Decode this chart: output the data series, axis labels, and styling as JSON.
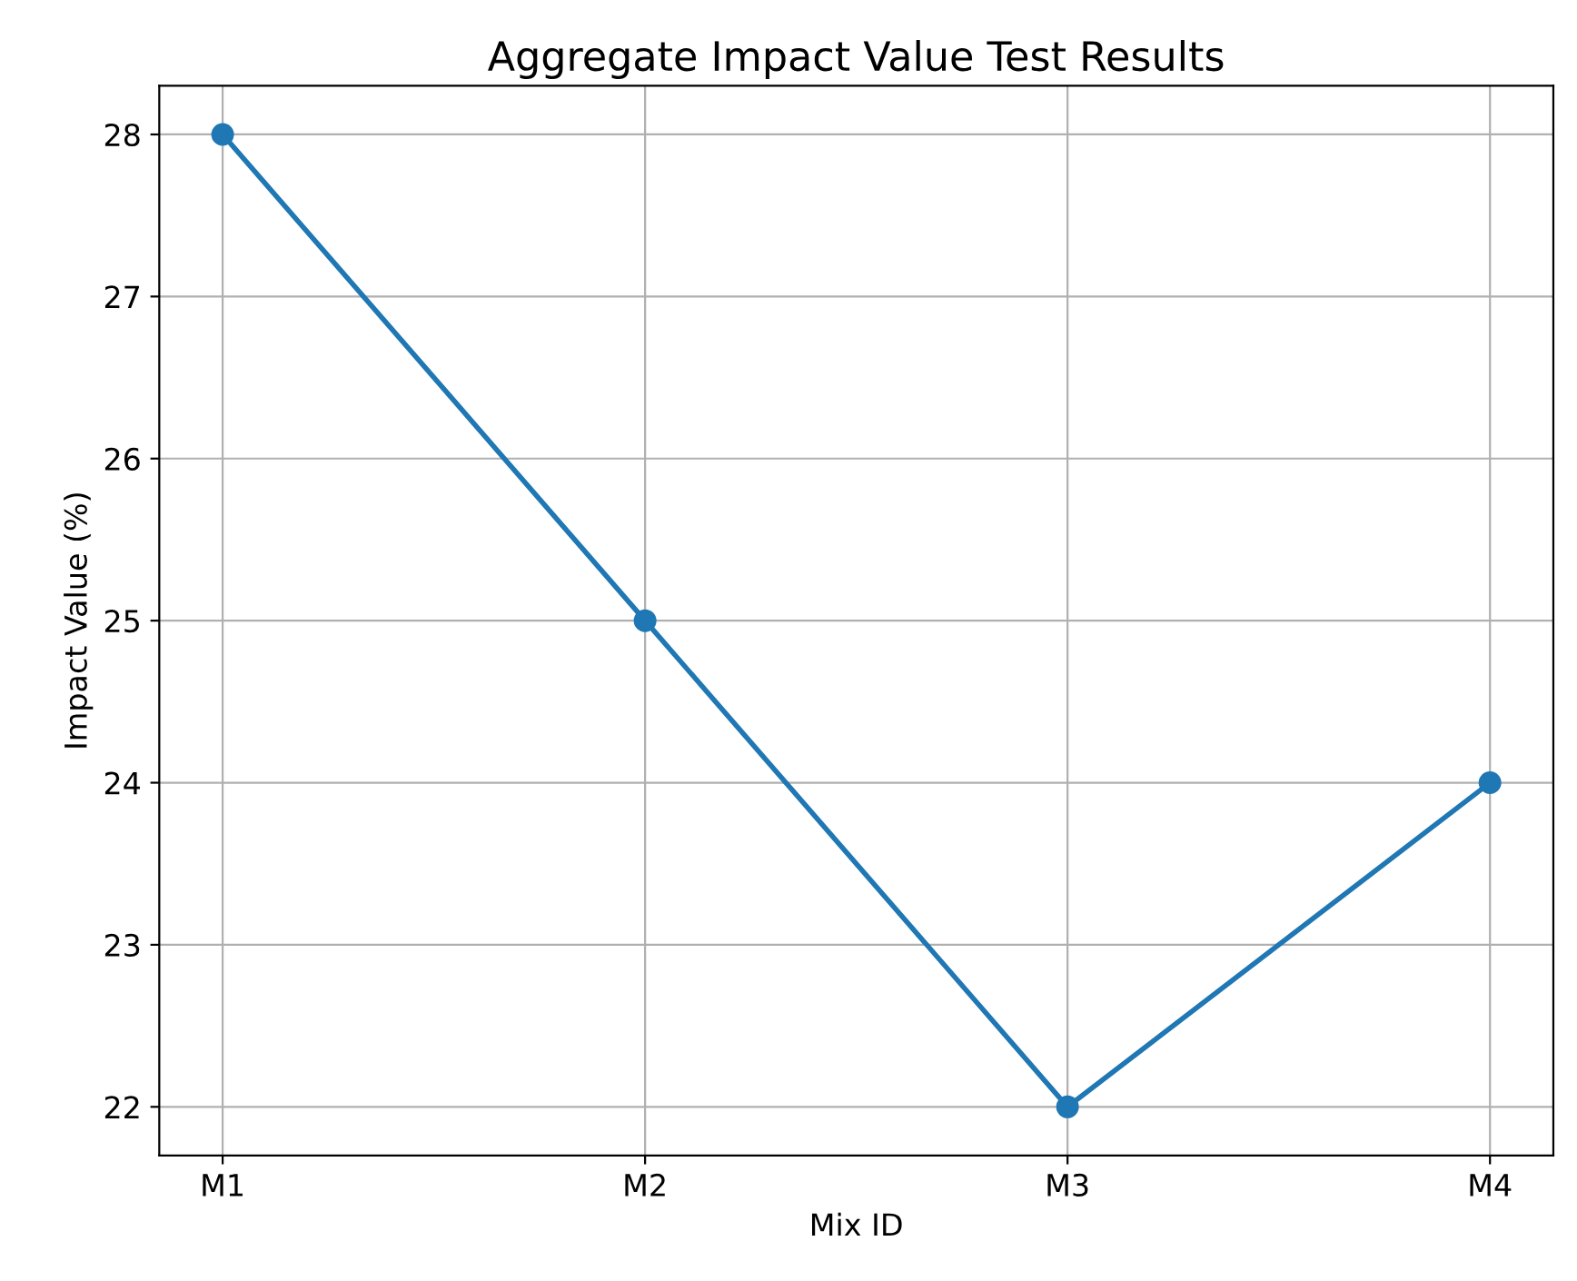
{
  "chart_data": {
    "type": "line",
    "title": "Aggregate Impact Value Test Results",
    "xlabel": "Mix ID",
    "ylabel": "Impact Value (%)",
    "categories": [
      "M1",
      "M2",
      "M3",
      "M4"
    ],
    "series": [
      {
        "color": "#1f77b4",
        "values": [
          28,
          25,
          22,
          24
        ]
      }
    ],
    "ylim": [
      21.7,
      28.3
    ],
    "yticks": [
      22,
      23,
      24,
      25,
      26,
      27,
      28
    ],
    "grid": true,
    "marker": "circle",
    "line_style": "solid"
  }
}
